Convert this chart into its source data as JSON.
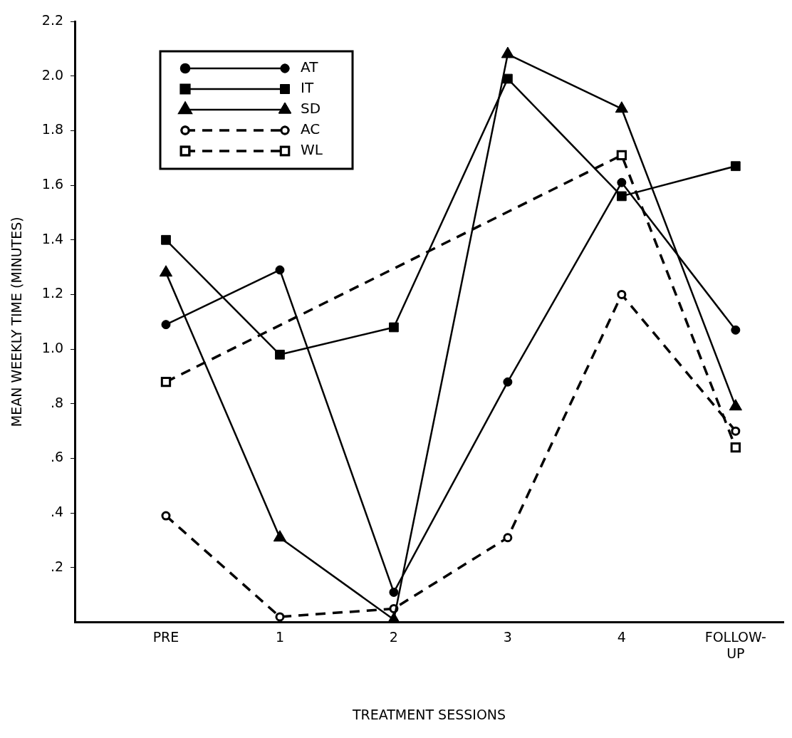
{
  "chart_data": {
    "type": "line",
    "xlabel": "TREATMENT SESSIONS",
    "ylabel": "MEAN WEEKLY TIME (MINUTES)",
    "categories": [
      "PRE",
      "1",
      "2",
      "3",
      "4",
      "FOLLOW-UP"
    ],
    "ylim": [
      0,
      2.2
    ],
    "yticks": [
      {
        "value": 0.2,
        "label": ".2"
      },
      {
        "value": 0.4,
        "label": ".4"
      },
      {
        "value": 0.6,
        "label": ".6"
      },
      {
        "value": 0.8,
        "label": ".8"
      },
      {
        "value": 1.0,
        "label": "1.0"
      },
      {
        "value": 1.2,
        "label": "1.2"
      },
      {
        "value": 1.4,
        "label": "1.4"
      },
      {
        "value": 1.6,
        "label": "1.6"
      },
      {
        "value": 1.8,
        "label": "1.8"
      },
      {
        "value": 2.0,
        "label": "2.0"
      },
      {
        "value": 2.2,
        "label": "2.2"
      }
    ],
    "grid": false,
    "legend": "top left",
    "series": [
      {
        "name": "AT",
        "color": "#000000",
        "marker": "circle",
        "line_style": "solid",
        "values": [
          1.09,
          1.29,
          0.11,
          0.88,
          1.61,
          1.07
        ]
      },
      {
        "name": "IT",
        "color": "#000000",
        "marker": "square",
        "line_style": "solid",
        "values": [
          1.4,
          0.98,
          1.08,
          1.99,
          1.56,
          1.67
        ]
      },
      {
        "name": "SD",
        "color": "#000000",
        "marker": "triangle",
        "line_style": "solid",
        "values": [
          1.28,
          0.31,
          0.01,
          2.08,
          1.88,
          0.79
        ]
      },
      {
        "name": "AC",
        "color": "#000000",
        "marker": "circle",
        "line_style": "dashed",
        "values": [
          0.39,
          0.02,
          0.05,
          0.31,
          1.2,
          0.7
        ]
      },
      {
        "name": "WL",
        "color": "#000000",
        "marker": "square",
        "line_style": "dashed",
        "values": [
          0.88,
          null,
          null,
          null,
          1.71,
          0.64
        ]
      }
    ]
  }
}
